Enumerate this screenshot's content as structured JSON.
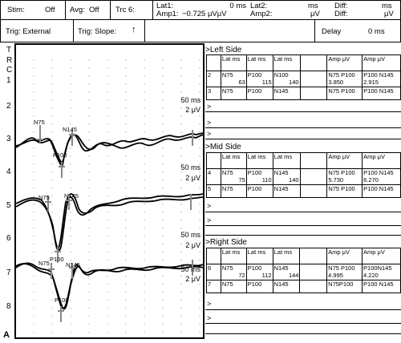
{
  "header": {
    "stim_label": "Stim:",
    "stim_value": "Off",
    "avg_label": "Avg:",
    "avg_value": "Off",
    "trc_label": "Trc 6:",
    "lat1_label": "Lat1:",
    "lat1_value": "0 ms",
    "amp1_label": "Amp1:",
    "amp1_value": "−0.725 μVμV",
    "lat2_label": "Lat2:",
    "lat2_unit": "ms",
    "amp2_label": "Amp2:",
    "amp2_unit": "μV",
    "diff1_label": "Diff:",
    "diff1_unit": "ms",
    "diff2_label": "Diff:",
    "diff2_unit": "μV",
    "trig_label": "Trig: External",
    "slope_label": "Trig: Slope:",
    "slope_arrow": "↑",
    "delay_label": "Delay",
    "delay_value": "0 ms"
  },
  "panel": {
    "trc_letters": [
      "T",
      "R",
      "C"
    ],
    "row_numbers": [
      "1",
      "2",
      "3",
      "4",
      "5",
      "6",
      "7",
      "8"
    ],
    "scale_ms": "50 ms",
    "scale_uv": "2 μV",
    "figure_letter": "A",
    "peak_labels": [
      "N75",
      "N145",
      "P100",
      "N75",
      "N145",
      "P100",
      "N75",
      "N145",
      "P100"
    ]
  },
  "sections": [
    {
      "title": ">Left Side",
      "header": [
        "Lat ms",
        "Lat ms",
        "Lat ms",
        "Amp μV",
        "Amp μV"
      ],
      "rows": [
        {
          "num": "2",
          "c1": "N75",
          "v1": "63",
          "c2": "P100",
          "v2": "115",
          "c3": "N100",
          "v3": "140",
          "a1": "N75 P100",
          "av1": "3.850",
          "a2": "P100 N145",
          "av2": "2.915"
        },
        {
          "num": "3",
          "c1": "N75",
          "v1": "",
          "c2": "P100",
          "v2": "",
          "c3": "N145",
          "v3": "",
          "a1": "N75 P100",
          "av1": "",
          "a2": "P100 N145",
          "av2": ""
        }
      ]
    },
    {
      "title": ">Mid Side",
      "header": [
        "Lat ms",
        "Lat ms",
        "Lat ms",
        "Amp μV",
        "Amp μV"
      ],
      "rows": [
        {
          "num": "4",
          "c1": "N75",
          "v1": "75",
          "c2": "P100",
          "v2": "110",
          "c3": "N145",
          "v3": "140",
          "a1": "N75 P100",
          "av1": "5.730",
          "a2": "P100 N145",
          "av2": "6.270"
        },
        {
          "num": "5",
          "c1": "N75",
          "v1": "",
          "c2": "P100",
          "v2": "",
          "c3": "N145",
          "v3": "",
          "a1": "N75 P100",
          "av1": "",
          "a2": "P100 N145",
          "av2": ""
        }
      ]
    },
    {
      "title": ">Right Side",
      "header": [
        "Lat ms",
        "Lat ms",
        "Lat ms",
        "Amp μV",
        "Amp μV"
      ],
      "rows": [
        {
          "num": "6",
          "c1": "N75",
          "v1": "72",
          "c2": "P100",
          "v2": "112",
          "c3": "N145",
          "v3": "144",
          "a1": "N75 P100",
          "av1": "4.995",
          "a2": "P100N145",
          "av2": "4.220"
        },
        {
          "num": "7",
          "c1": "N75",
          "v1": "",
          "c2": "P100",
          "v2": "",
          "c3": "N145",
          "v3": "",
          "a1": "N75P100",
          "av1": "",
          "a2": "P100 N145",
          "av2": ""
        }
      ]
    }
  ],
  "gt": ">"
}
